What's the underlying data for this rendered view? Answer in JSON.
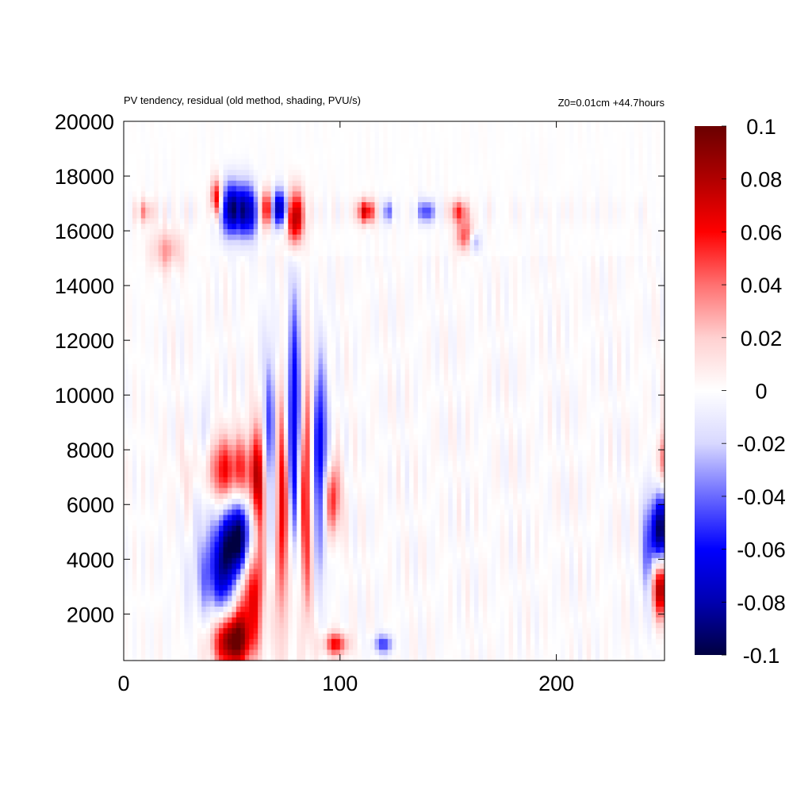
{
  "chart_data": {
    "type": "heatmap",
    "title": "PV tendency, residual (old method, shading, PVU/s)",
    "annotation": "Z0=0.01cm   +44.7hours",
    "xlabel": "",
    "ylabel": "",
    "xlim": [
      0,
      250
    ],
    "ylim": [
      300,
      20000
    ],
    "x_ticks": [
      0,
      100,
      200
    ],
    "y_ticks": [
      2000,
      4000,
      6000,
      8000,
      10000,
      12000,
      14000,
      16000,
      18000,
      20000
    ],
    "colorbar": {
      "min": -0.1,
      "max": 0.1,
      "ticks": [
        "0.1",
        "0.08",
        "0.06",
        "0.04",
        "0.02",
        "0",
        "-0.02",
        "-0.04",
        "-0.06",
        "-0.08",
        "-0.1"
      ],
      "colors": [
        "#000040",
        "#0000b0",
        "#0000ff",
        "#6a6aff",
        "#d8d8ff",
        "#ffffff",
        "#ffd0d0",
        "#ff7070",
        "#ff0000",
        "#b00000",
        "#6a0000"
      ]
    },
    "features": [
      {
        "x": 50,
        "y": 1000,
        "sx": 6,
        "sy": 700,
        "v": 0.1
      },
      {
        "x": 57,
        "y": 3000,
        "sx": 5,
        "sy": 1300,
        "v": 0.09
      },
      {
        "x": 48,
        "y": 3400,
        "sx": 9,
        "sy": 1100,
        "v": -0.07
      },
      {
        "x": 53,
        "y": 4800,
        "sx": 6,
        "sy": 1000,
        "v": -0.1
      },
      {
        "x": 48,
        "y": 7200,
        "sx": 10,
        "sy": 900,
        "v": 0.06
      },
      {
        "x": 63,
        "y": 6000,
        "sx": 3,
        "sy": 2200,
        "v": 0.08
      },
      {
        "x": 68,
        "y": 7500,
        "sx": 3,
        "sy": 2800,
        "v": -0.08
      },
      {
        "x": 73,
        "y": 6500,
        "sx": 3,
        "sy": 3200,
        "v": 0.09
      },
      {
        "x": 79,
        "y": 8500,
        "sx": 3,
        "sy": 3200,
        "v": -0.1
      },
      {
        "x": 84,
        "y": 7000,
        "sx": 3,
        "sy": 3200,
        "v": 0.09
      },
      {
        "x": 90,
        "y": 7500,
        "sx": 3,
        "sy": 2600,
        "v": -0.08
      },
      {
        "x": 96,
        "y": 6200,
        "sx": 3,
        "sy": 1000,
        "v": 0.06
      },
      {
        "x": 37,
        "y": 7200,
        "sx": 3,
        "sy": 1500,
        "v": -0.03
      },
      {
        "x": 72,
        "y": 16800,
        "sx": 3,
        "sy": 500,
        "v": -0.09
      },
      {
        "x": 79,
        "y": 16500,
        "sx": 3,
        "sy": 700,
        "v": 0.09
      },
      {
        "x": 66,
        "y": 16800,
        "sx": 2,
        "sy": 500,
        "v": 0.08
      },
      {
        "x": 50,
        "y": 16800,
        "sx": 4,
        "sy": 700,
        "v": -0.09
      },
      {
        "x": 58,
        "y": 16700,
        "sx": 3,
        "sy": 700,
        "v": -0.07
      },
      {
        "x": 43,
        "y": 17200,
        "sx": 2,
        "sy": 500,
        "v": 0.07
      },
      {
        "x": 112,
        "y": 16700,
        "sx": 3,
        "sy": 300,
        "v": 0.07
      },
      {
        "x": 122,
        "y": 16700,
        "sx": 2,
        "sy": 300,
        "v": -0.04
      },
      {
        "x": 140,
        "y": 16700,
        "sx": 3,
        "sy": 300,
        "v": -0.05
      },
      {
        "x": 155,
        "y": 16700,
        "sx": 3,
        "sy": 300,
        "v": 0.05
      },
      {
        "x": 158,
        "y": 15800,
        "sx": 3,
        "sy": 400,
        "v": 0.05
      },
      {
        "x": 162,
        "y": 15600,
        "sx": 2,
        "sy": 300,
        "v": -0.04
      },
      {
        "x": 20,
        "y": 15300,
        "sx": 5,
        "sy": 500,
        "v": 0.03
      },
      {
        "x": 10,
        "y": 16700,
        "sx": 3,
        "sy": 300,
        "v": 0.03
      },
      {
        "x": 98,
        "y": 900,
        "sx": 4,
        "sy": 300,
        "v": 0.06
      },
      {
        "x": 120,
        "y": 900,
        "sx": 3,
        "sy": 250,
        "v": -0.05
      },
      {
        "x": 248,
        "y": 5000,
        "sx": 3,
        "sy": 1000,
        "v": -0.1
      },
      {
        "x": 248,
        "y": 3000,
        "sx": 3,
        "sy": 800,
        "v": 0.09
      },
      {
        "x": 250,
        "y": 7500,
        "sx": 2,
        "sy": 800,
        "v": 0.05
      },
      {
        "x": 242,
        "y": 4000,
        "sx": 2,
        "sy": 1500,
        "v": -0.04
      }
    ]
  }
}
